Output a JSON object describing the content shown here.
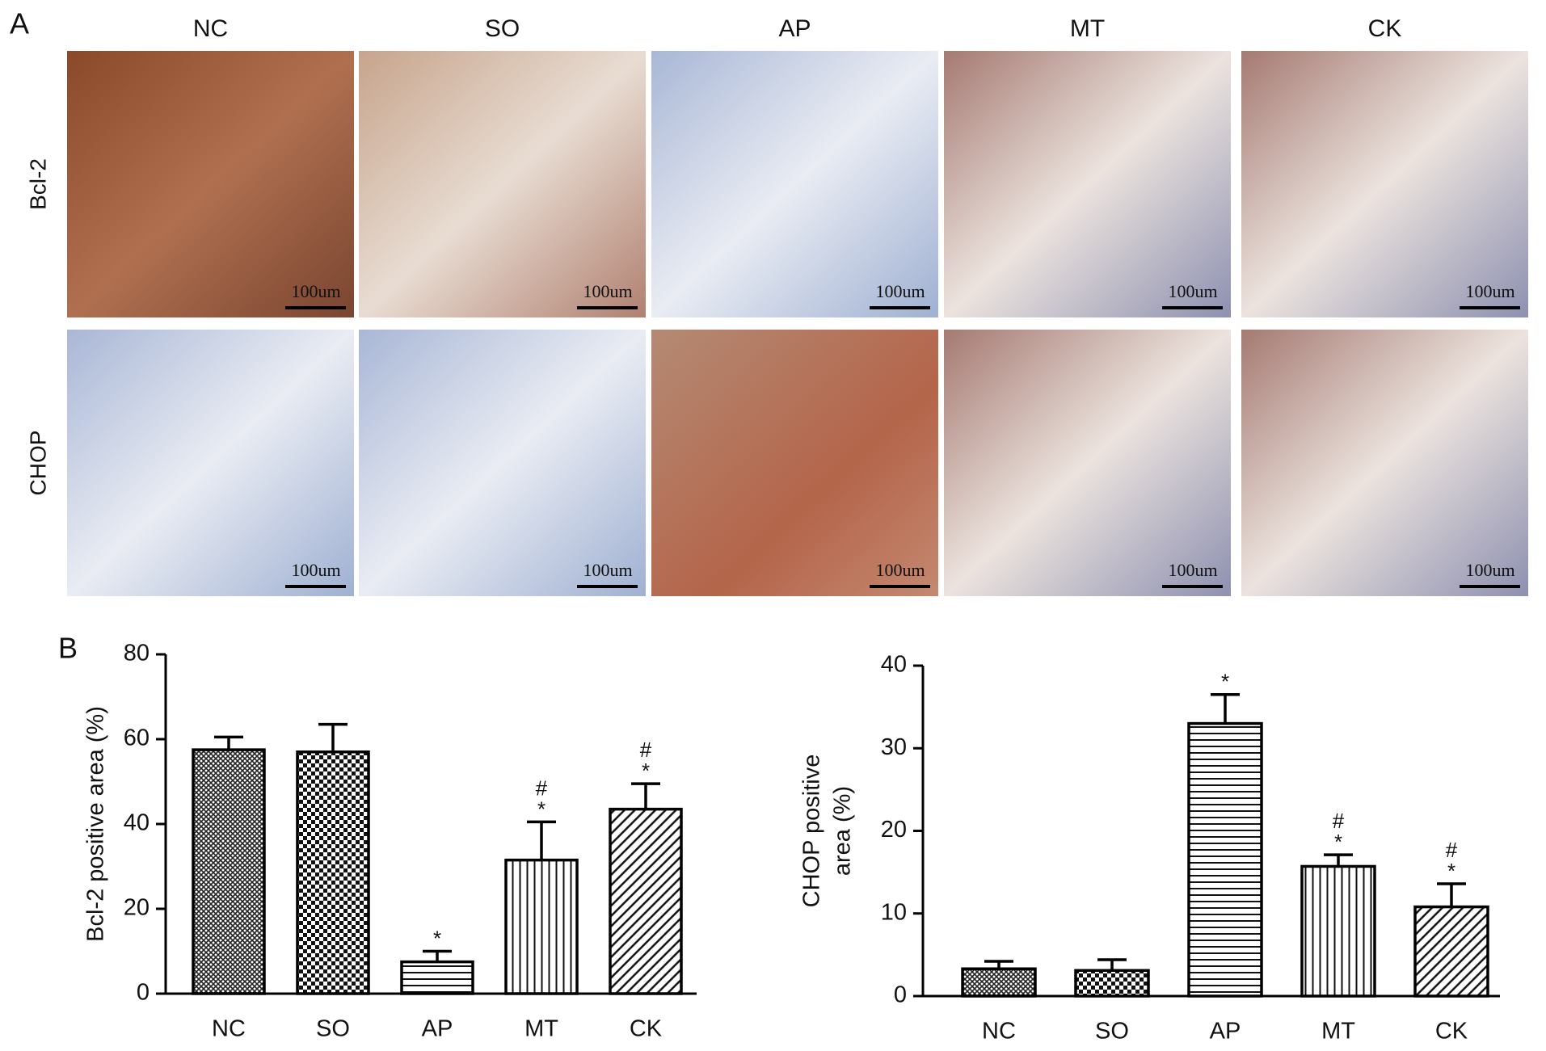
{
  "panel_a": {
    "label": "A",
    "columns": [
      "NC",
      "SO",
      "AP",
      "MT",
      "CK"
    ],
    "rows": [
      "Bcl-2",
      "CHOP"
    ],
    "scale_bar": "100um"
  },
  "chart_data": [
    {
      "type": "bar",
      "panel_label": "B",
      "ylabel": [
        "Bcl-2 positive area (%)"
      ],
      "categories": [
        "NC",
        "SO",
        "AP",
        "MT",
        "CK"
      ],
      "values": [
        57.5,
        57,
        7.5,
        31.5,
        43.5
      ],
      "errors": [
        3,
        6.5,
        2.5,
        9,
        6
      ],
      "annotations": [
        null,
        null,
        [
          "*"
        ],
        [
          "#",
          "*"
        ],
        [
          "#",
          "*"
        ]
      ],
      "patterns": [
        "crosshatch",
        "checker",
        "horizontal",
        "vertical",
        "diagonal"
      ],
      "ylim": [
        0,
        80
      ],
      "yticks": [
        0,
        20,
        40,
        60,
        80
      ]
    },
    {
      "type": "bar",
      "ylabel": [
        "CHOP positive",
        "area (%)"
      ],
      "categories": [
        "NC",
        "SO",
        "AP",
        "MT",
        "CK"
      ],
      "values": [
        3.3,
        3.1,
        33,
        15.7,
        10.8
      ],
      "errors": [
        0.9,
        1.3,
        3.5,
        1.4,
        2.8
      ],
      "annotations": [
        null,
        null,
        [
          "*"
        ],
        [
          "#",
          "*"
        ],
        [
          "#",
          "*"
        ]
      ],
      "patterns": [
        "crosshatch",
        "checker",
        "horizontal",
        "vertical",
        "diagonal"
      ],
      "ylim": [
        0,
        40
      ],
      "yticks": [
        0,
        10,
        20,
        30,
        40
      ]
    }
  ]
}
